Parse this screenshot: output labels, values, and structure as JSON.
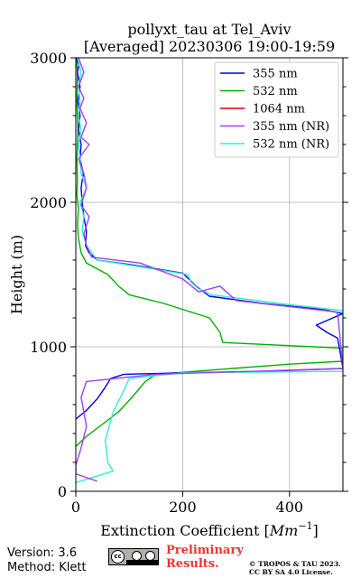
{
  "chart_data": {
    "type": "line",
    "title": "pollyxt_tau at Tel_Aviv",
    "subtitle": "[Averaged] 20230306 19:00-19:59",
    "xlabel": "Extinction Coefficient [Mm⁻¹]",
    "ylabel": "Height (m)",
    "xlim": [
      0,
      500
    ],
    "ylim": [
      0,
      3000
    ],
    "xticks": [
      0,
      200,
      400
    ],
    "yticks": [
      0,
      1000,
      2000,
      3000
    ],
    "grid": true,
    "legend_position": "top-right",
    "series": [
      {
        "name": "355 nm",
        "color": "#0000ee",
        "points": [
          [
            0,
            500
          ],
          [
            20,
            560
          ],
          [
            40,
            640
          ],
          [
            55,
            720
          ],
          [
            65,
            780
          ],
          [
            90,
            810
          ],
          [
            200,
            820
          ],
          [
            350,
            830
          ],
          [
            500,
            850
          ],
          [
            490,
            1060
          ],
          [
            470,
            1100
          ],
          [
            450,
            1150
          ],
          [
            500,
            1230
          ],
          [
            460,
            1260
          ],
          [
            350,
            1300
          ],
          [
            250,
            1350
          ],
          [
            225,
            1420
          ],
          [
            200,
            1510
          ],
          [
            150,
            1540
          ],
          [
            100,
            1570
          ],
          [
            40,
            1600
          ],
          [
            25,
            1650
          ],
          [
            18,
            1700
          ],
          [
            20,
            1800
          ],
          [
            15,
            1900
          ],
          [
            12,
            2000
          ],
          [
            10,
            2100
          ],
          [
            14,
            2200
          ],
          [
            8,
            2300
          ],
          [
            10,
            2400
          ],
          [
            5,
            2500
          ],
          [
            8,
            2600
          ],
          [
            4,
            2700
          ],
          [
            8,
            2800
          ],
          [
            3,
            2900
          ],
          [
            6,
            2950
          ],
          [
            0,
            3000
          ]
        ]
      },
      {
        "name": "532 nm",
        "color": "#00b000",
        "points": [
          [
            0,
            310
          ],
          [
            20,
            380
          ],
          [
            45,
            450
          ],
          [
            80,
            550
          ],
          [
            105,
            650
          ],
          [
            130,
            760
          ],
          [
            150,
            810
          ],
          [
            400,
            880
          ],
          [
            500,
            900
          ],
          [
            500,
            990
          ],
          [
            275,
            1030
          ],
          [
            270,
            1100
          ],
          [
            250,
            1200
          ],
          [
            165,
            1300
          ],
          [
            100,
            1360
          ],
          [
            80,
            1420
          ],
          [
            60,
            1500
          ],
          [
            20,
            1580
          ],
          [
            10,
            1650
          ],
          [
            5,
            1750
          ],
          [
            3,
            1850
          ],
          [
            5,
            1950
          ],
          [
            2,
            2050
          ],
          [
            3,
            2150
          ],
          [
            2,
            2300
          ],
          [
            4,
            2500
          ],
          [
            2,
            2700
          ],
          [
            3,
            2900
          ],
          [
            1,
            3000
          ]
        ]
      },
      {
        "name": "1064 nm",
        "color": "#dd0000",
        "points": []
      },
      {
        "name": "355 nm (NR)",
        "color": "#a040f0",
        "points": [
          [
            40,
            70
          ],
          [
            0,
            120
          ],
          [
            0,
            180
          ],
          [
            10,
            300
          ],
          [
            20,
            450
          ],
          [
            10,
            650
          ],
          [
            20,
            760
          ],
          [
            150,
            810
          ],
          [
            500,
            850
          ],
          [
            490,
            1240
          ],
          [
            300,
            1320
          ],
          [
            270,
            1420
          ],
          [
            230,
            1380
          ],
          [
            200,
            1470
          ],
          [
            120,
            1580
          ],
          [
            30,
            1620
          ],
          [
            20,
            1700
          ],
          [
            15,
            1780
          ],
          [
            25,
            1900
          ],
          [
            10,
            1980
          ],
          [
            20,
            2100
          ],
          [
            15,
            2200
          ],
          [
            5,
            2300
          ],
          [
            25,
            2400
          ],
          [
            10,
            2450
          ],
          [
            20,
            2550
          ],
          [
            8,
            2650
          ],
          [
            15,
            2720
          ],
          [
            5,
            2800
          ],
          [
            15,
            2900
          ],
          [
            5,
            3000
          ]
        ]
      },
      {
        "name": "532 nm (NR)",
        "color": "#30f0d0",
        "points": [
          [
            0,
            60
          ],
          [
            70,
            140
          ],
          [
            60,
            200
          ],
          [
            55,
            350
          ],
          [
            70,
            550
          ],
          [
            90,
            700
          ],
          [
            100,
            780
          ],
          [
            200,
            820
          ],
          [
            500,
            830
          ],
          [
            500,
            1250
          ],
          [
            380,
            1300
          ],
          [
            255,
            1360
          ],
          [
            230,
            1400
          ],
          [
            215,
            1450
          ],
          [
            210,
            1500
          ],
          [
            110,
            1560
          ],
          [
            40,
            1600
          ],
          [
            20,
            1700
          ],
          [
            12,
            1800
          ],
          [
            15,
            1900
          ],
          [
            8,
            2000
          ],
          [
            20,
            2100
          ],
          [
            10,
            2200
          ],
          [
            8,
            2300
          ],
          [
            5,
            2400
          ],
          [
            10,
            2500
          ],
          [
            5,
            2600
          ],
          [
            8,
            2700
          ],
          [
            5,
            2800
          ],
          [
            10,
            2900
          ],
          [
            3,
            3000
          ]
        ]
      }
    ]
  },
  "footer": {
    "version": "Version: 3.6",
    "method": "Method: Klett",
    "preliminary": [
      "Preliminary",
      "Results."
    ],
    "license": [
      "© TROPOS & TAU 2023.",
      "CC BY SA 4.0 License."
    ]
  }
}
